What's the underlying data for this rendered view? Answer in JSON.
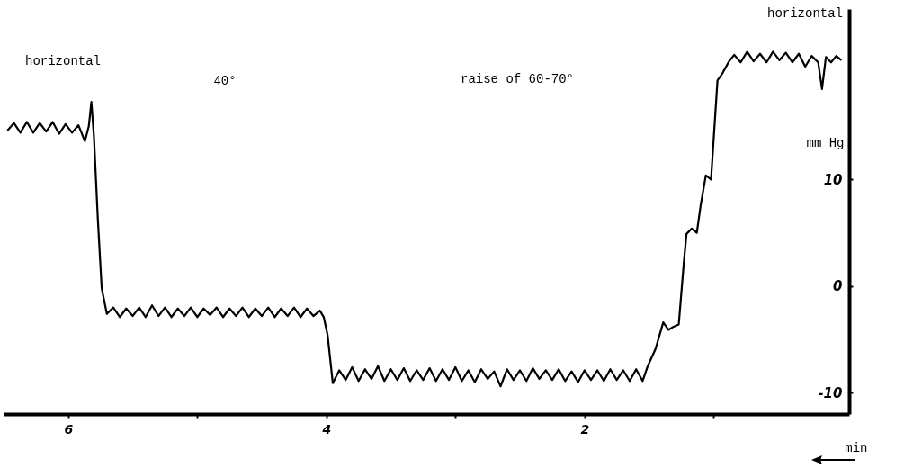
{
  "chart_data": {
    "type": "line",
    "xlabel": "min",
    "ylabel": "mm Hg",
    "annotations": [
      "horizontal",
      "40°",
      "raise of 60-70°",
      "horizontal"
    ],
    "x": [
      6.47,
      6.42,
      6.37,
      6.32,
      6.27,
      6.22,
      6.17,
      6.12,
      6.07,
      6.02,
      5.97,
      5.92,
      5.87,
      5.84,
      5.82,
      5.8,
      5.77,
      5.74,
      5.7,
      5.65,
      5.6,
      5.55,
      5.5,
      5.45,
      5.4,
      5.35,
      5.3,
      5.25,
      5.2,
      5.15,
      5.1,
      5.05,
      5.0,
      4.95,
      4.9,
      4.85,
      4.8,
      4.75,
      4.7,
      4.65,
      4.6,
      4.55,
      4.5,
      4.45,
      4.4,
      4.35,
      4.3,
      4.25,
      4.2,
      4.15,
      4.1,
      4.05,
      4.02,
      3.99,
      3.95,
      3.9,
      3.85,
      3.8,
      3.75,
      3.7,
      3.65,
      3.6,
      3.55,
      3.5,
      3.45,
      3.4,
      3.35,
      3.3,
      3.25,
      3.2,
      3.15,
      3.1,
      3.05,
      3.0,
      2.95,
      2.9,
      2.85,
      2.8,
      2.75,
      2.7,
      2.65,
      2.6,
      2.55,
      2.5,
      2.45,
      2.4,
      2.35,
      2.3,
      2.25,
      2.2,
      2.15,
      2.1,
      2.05,
      2.0,
      1.95,
      1.9,
      1.85,
      1.8,
      1.75,
      1.7,
      1.65,
      1.6,
      1.55,
      1.51,
      1.45,
      1.39,
      1.35,
      1.31,
      1.27,
      1.23,
      1.21,
      1.17,
      1.13,
      1.1,
      1.06,
      1.02,
      1.0,
      0.97,
      0.93,
      0.88,
      0.84,
      0.79,
      0.74,
      0.69,
      0.64,
      0.59,
      0.54,
      0.49,
      0.44,
      0.39,
      0.34,
      0.29,
      0.24,
      0.19,
      0.16,
      0.13,
      0.09,
      0.05,
      0.01
    ],
    "series": [
      {
        "color": "#000000",
        "values": [
          14.6,
          15.3,
          14.4,
          15.4,
          14.4,
          15.3,
          14.5,
          15.4,
          14.3,
          15.2,
          14.4,
          15.1,
          13.6,
          15.0,
          17.3,
          14.0,
          6.3,
          -0.2,
          -2.6,
          -2.0,
          -2.9,
          -2.1,
          -2.8,
          -2.0,
          -2.9,
          -1.8,
          -2.8,
          -2.0,
          -2.9,
          -2.1,
          -2.8,
          -2.0,
          -2.9,
          -2.1,
          -2.7,
          -2.0,
          -2.9,
          -2.1,
          -2.8,
          -2.0,
          -2.9,
          -2.1,
          -2.8,
          -2.0,
          -2.9,
          -2.1,
          -2.8,
          -2.0,
          -2.9,
          -2.1,
          -2.8,
          -2.3,
          -2.9,
          -4.6,
          -9.1,
          -7.9,
          -8.8,
          -7.6,
          -8.9,
          -7.8,
          -8.7,
          -7.5,
          -8.9,
          -7.8,
          -8.8,
          -7.7,
          -8.9,
          -7.9,
          -8.8,
          -7.7,
          -8.9,
          -7.8,
          -8.8,
          -7.6,
          -8.9,
          -7.9,
          -9.0,
          -7.8,
          -8.7,
          -8.0,
          -9.4,
          -7.8,
          -8.8,
          -7.9,
          -8.9,
          -7.7,
          -8.7,
          -7.9,
          -8.8,
          -7.8,
          -8.9,
          -8.0,
          -9.0,
          -7.9,
          -8.8,
          -7.9,
          -8.9,
          -7.8,
          -8.8,
          -7.9,
          -8.9,
          -7.8,
          -8.9,
          -7.5,
          -5.9,
          -3.4,
          -4.1,
          -3.8,
          -3.6,
          2.3,
          4.9,
          5.4,
          5.0,
          7.6,
          10.4,
          10.0,
          13.7,
          19.3,
          20.0,
          21.1,
          21.7,
          21.0,
          22.0,
          21.1,
          21.8,
          21.0,
          22.0,
          21.2,
          21.9,
          21.0,
          21.8,
          20.6,
          21.6,
          21.0,
          18.5,
          21.5,
          21.0,
          21.6,
          21.2
        ]
      }
    ],
    "xlim": [
      6.5,
      -0.05
    ],
    "ylim": [
      -12,
      26
    ],
    "xticks": [
      6,
      {
        "value": 5,
        "label": null
      },
      4,
      {
        "value": 3,
        "label": null
      },
      2,
      {
        "value": 1,
        "label": null
      }
    ],
    "yticks": [
      -10,
      0,
      10
    ],
    "grid": false,
    "line_style": "solid"
  }
}
